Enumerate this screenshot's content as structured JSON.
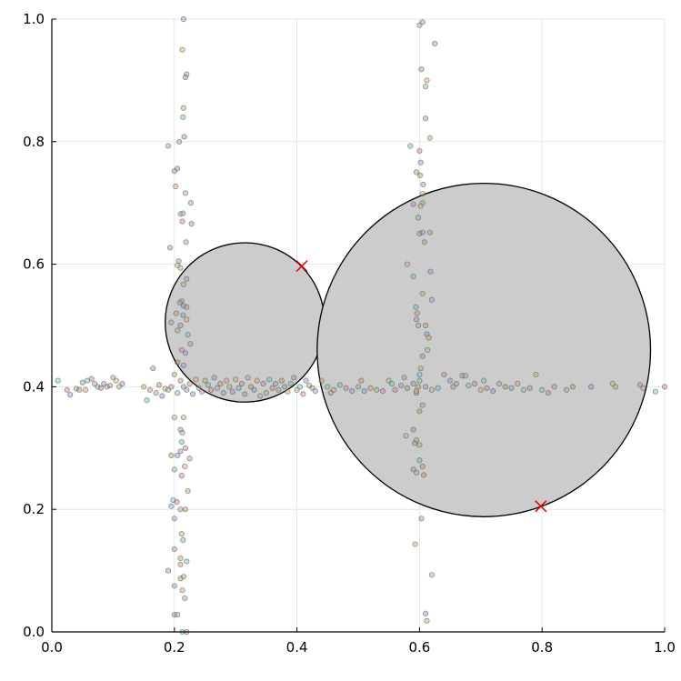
{
  "chart_data": {
    "type": "scatter",
    "title": "",
    "xlabel": "",
    "ylabel": "",
    "xlim": [
      0,
      1
    ],
    "ylim": [
      0,
      1
    ],
    "grid": true,
    "legend": "none",
    "x_ticks": [
      "0.0",
      "0.2",
      "0.4",
      "0.6",
      "0.8",
      "1.0"
    ],
    "y_ticks": [
      "0.0",
      "0.2",
      "0.4",
      "0.6",
      "0.8",
      "1.0"
    ],
    "circles": [
      {
        "cx": 0.315,
        "cy": 0.505,
        "r": 0.13
      },
      {
        "cx": 0.705,
        "cy": 0.46,
        "r": 0.272
      }
    ],
    "markers": [
      {
        "x": 0.408,
        "y": 0.597
      },
      {
        "x": 0.798,
        "y": 0.205
      }
    ],
    "point_colors": [
      "#6fa0d8",
      "#e0a060",
      "#7fbf7f",
      "#c07fc0",
      "#b0b060",
      "#60c0c0",
      "#d08080",
      "#9090d0",
      "#a0a0a0",
      "#c09050"
    ],
    "series": [
      {
        "values": [
          [
            0.215,
            1.0
          ],
          [
            0.213,
            0.95
          ],
          [
            0.22,
            0.91
          ],
          [
            0.218,
            0.905
          ],
          [
            0.215,
            0.855
          ],
          [
            0.214,
            0.84
          ],
          [
            0.216,
            0.808
          ],
          [
            0.208,
            0.8
          ],
          [
            0.19,
            0.793
          ],
          [
            0.205,
            0.756
          ],
          [
            0.2,
            0.752
          ],
          [
            0.202,
            0.727
          ],
          [
            0.218,
            0.716
          ],
          [
            0.227,
            0.7
          ],
          [
            0.21,
            0.682
          ],
          [
            0.214,
            0.683
          ],
          [
            0.213,
            0.67
          ],
          [
            0.228,
            0.666
          ],
          [
            0.219,
            0.636
          ],
          [
            0.193,
            0.627
          ],
          [
            0.207,
            0.605
          ],
          [
            0.205,
            0.598
          ],
          [
            0.21,
            0.594
          ],
          [
            0.22,
            0.576
          ],
          [
            0.215,
            0.567
          ],
          [
            0.212,
            0.54
          ],
          [
            0.209,
            0.537
          ],
          [
            0.215,
            0.532
          ],
          [
            0.22,
            0.53
          ],
          [
            0.203,
            0.52
          ],
          [
            0.214,
            0.517
          ],
          [
            0.22,
            0.51
          ],
          [
            0.195,
            0.505
          ],
          [
            0.21,
            0.5
          ],
          [
            0.205,
            0.492
          ],
          [
            0.222,
            0.485
          ],
          [
            0.212,
            0.46
          ],
          [
            0.218,
            0.455
          ],
          [
            0.226,
            0.47
          ],
          [
            0.205,
            0.44
          ],
          [
            0.215,
            0.435
          ],
          [
            0.2,
            0.35
          ],
          [
            0.215,
            0.35
          ],
          [
            0.21,
            0.33
          ],
          [
            0.213,
            0.325
          ],
          [
            0.212,
            0.31
          ],
          [
            0.218,
            0.3
          ],
          [
            0.21,
            0.295
          ],
          [
            0.225,
            0.283
          ],
          [
            0.195,
            0.288
          ],
          [
            0.205,
            0.288
          ],
          [
            0.217,
            0.27
          ],
          [
            0.2,
            0.265
          ],
          [
            0.212,
            0.255
          ],
          [
            0.222,
            0.23
          ],
          [
            0.198,
            0.215
          ],
          [
            0.204,
            0.212
          ],
          [
            0.195,
            0.205
          ],
          [
            0.21,
            0.2
          ],
          [
            0.218,
            0.2
          ],
          [
            0.2,
            0.185
          ],
          [
            0.212,
            0.16
          ],
          [
            0.214,
            0.15
          ],
          [
            0.2,
            0.135
          ],
          [
            0.21,
            0.12
          ],
          [
            0.22,
            0.115
          ],
          [
            0.21,
            0.11
          ],
          [
            0.19,
            0.1
          ],
          [
            0.215,
            0.09
          ],
          [
            0.21,
            0.087
          ],
          [
            0.2,
            0.075
          ],
          [
            0.213,
            0.068
          ],
          [
            0.217,
            0.055
          ],
          [
            0.2,
            0.028
          ],
          [
            0.205,
            0.028
          ],
          [
            0.213,
            0.0
          ],
          [
            0.22,
            0.0
          ]
        ]
      },
      {
        "values": [
          [
            0.605,
            0.995
          ],
          [
            0.6,
            0.99
          ],
          [
            0.625,
            0.96
          ],
          [
            0.603,
            0.918
          ],
          [
            0.612,
            0.9
          ],
          [
            0.61,
            0.89
          ],
          [
            0.61,
            0.838
          ],
          [
            0.617,
            0.806
          ],
          [
            0.585,
            0.793
          ],
          [
            0.6,
            0.785
          ],
          [
            0.602,
            0.766
          ],
          [
            0.595,
            0.75
          ],
          [
            0.601,
            0.745
          ],
          [
            0.606,
            0.73
          ],
          [
            0.605,
            0.715
          ],
          [
            0.605,
            0.7
          ],
          [
            0.59,
            0.698
          ],
          [
            0.602,
            0.695
          ],
          [
            0.598,
            0.676
          ],
          [
            0.6,
            0.65
          ],
          [
            0.605,
            0.652
          ],
          [
            0.617,
            0.652
          ],
          [
            0.608,
            0.636
          ],
          [
            0.618,
            0.588
          ],
          [
            0.58,
            0.6
          ],
          [
            0.59,
            0.58
          ],
          [
            0.62,
            0.542
          ],
          [
            0.605,
            0.552
          ],
          [
            0.594,
            0.53
          ],
          [
            0.596,
            0.52
          ],
          [
            0.595,
            0.51
          ],
          [
            0.598,
            0.5
          ],
          [
            0.61,
            0.5
          ],
          [
            0.612,
            0.486
          ],
          [
            0.615,
            0.48
          ],
          [
            0.613,
            0.46
          ],
          [
            0.605,
            0.45
          ],
          [
            0.602,
            0.43
          ],
          [
            0.6,
            0.42
          ],
          [
            0.598,
            0.4
          ],
          [
            0.595,
            0.39
          ],
          [
            0.605,
            0.37
          ],
          [
            0.6,
            0.36
          ],
          [
            0.59,
            0.33
          ],
          [
            0.578,
            0.32
          ],
          [
            0.595,
            0.313
          ],
          [
            0.592,
            0.308
          ],
          [
            0.6,
            0.305
          ],
          [
            0.6,
            0.28
          ],
          [
            0.605,
            0.27
          ],
          [
            0.59,
            0.265
          ],
          [
            0.595,
            0.26
          ],
          [
            0.607,
            0.256
          ],
          [
            0.603,
            0.185
          ],
          [
            0.593,
            0.143
          ],
          [
            0.62,
            0.093
          ],
          [
            0.61,
            0.03
          ],
          [
            0.612,
            0.018
          ]
        ]
      },
      {
        "values": [
          [
            0.01,
            0.41
          ],
          [
            0.025,
            0.395
          ],
          [
            0.03,
            0.387
          ],
          [
            0.04,
            0.397
          ],
          [
            0.045,
            0.395
          ],
          [
            0.05,
            0.407
          ],
          [
            0.055,
            0.395
          ],
          [
            0.058,
            0.41
          ],
          [
            0.065,
            0.413
          ],
          [
            0.07,
            0.405
          ],
          [
            0.075,
            0.4
          ],
          [
            0.08,
            0.398
          ],
          [
            0.085,
            0.405
          ],
          [
            0.09,
            0.4
          ],
          [
            0.095,
            0.402
          ],
          [
            0.1,
            0.415
          ],
          [
            0.105,
            0.41
          ],
          [
            0.11,
            0.4
          ],
          [
            0.115,
            0.405
          ],
          [
            0.15,
            0.4
          ],
          [
            0.155,
            0.378
          ],
          [
            0.16,
            0.395
          ],
          [
            0.165,
            0.43
          ],
          [
            0.17,
            0.39
          ],
          [
            0.175,
            0.403
          ],
          [
            0.18,
            0.385
          ],
          [
            0.185,
            0.397
          ],
          [
            0.19,
            0.395
          ],
          [
            0.195,
            0.4
          ],
          [
            0.2,
            0.42
          ],
          [
            0.205,
            0.39
          ],
          [
            0.21,
            0.41
          ],
          [
            0.215,
            0.4
          ],
          [
            0.22,
            0.395
          ],
          [
            0.225,
            0.405
          ],
          [
            0.23,
            0.388
          ],
          [
            0.235,
            0.412
          ],
          [
            0.24,
            0.398
          ],
          [
            0.245,
            0.392
          ],
          [
            0.25,
            0.41
          ],
          [
            0.255,
            0.403
          ],
          [
            0.26,
            0.395
          ],
          [
            0.265,
            0.415
          ],
          [
            0.27,
            0.398
          ],
          [
            0.275,
            0.405
          ],
          [
            0.28,
            0.39
          ],
          [
            0.285,
            0.41
          ],
          [
            0.29,
            0.4
          ],
          [
            0.295,
            0.392
          ],
          [
            0.3,
            0.412
          ],
          [
            0.305,
            0.398
          ],
          [
            0.31,
            0.405
          ],
          [
            0.315,
            0.388
          ],
          [
            0.32,
            0.415
          ],
          [
            0.325,
            0.4
          ],
          [
            0.33,
            0.395
          ],
          [
            0.335,
            0.41
          ],
          [
            0.34,
            0.385
          ],
          [
            0.345,
            0.405
          ],
          [
            0.35,
            0.39
          ],
          [
            0.355,
            0.412
          ],
          [
            0.36,
            0.398
          ],
          [
            0.365,
            0.405
          ],
          [
            0.37,
            0.395
          ],
          [
            0.375,
            0.41
          ],
          [
            0.38,
            0.4
          ],
          [
            0.385,
            0.392
          ],
          [
            0.39,
            0.405
          ],
          [
            0.395,
            0.415
          ],
          [
            0.4,
            0.395
          ],
          [
            0.405,
            0.4
          ],
          [
            0.41,
            0.388
          ],
          [
            0.415,
            0.41
          ],
          [
            0.42,
            0.402
          ],
          [
            0.425,
            0.398
          ],
          [
            0.43,
            0.393
          ],
          [
            0.44,
            0.41
          ],
          [
            0.45,
            0.4
          ],
          [
            0.455,
            0.39
          ],
          [
            0.46,
            0.395
          ],
          [
            0.47,
            0.403
          ],
          [
            0.48,
            0.398
          ],
          [
            0.49,
            0.393
          ],
          [
            0.5,
            0.4
          ],
          [
            0.505,
            0.41
          ],
          [
            0.51,
            0.393
          ],
          [
            0.52,
            0.398
          ],
          [
            0.53,
            0.395
          ],
          [
            0.54,
            0.393
          ],
          [
            0.55,
            0.41
          ],
          [
            0.555,
            0.405
          ],
          [
            0.56,
            0.395
          ],
          [
            0.57,
            0.402
          ],
          [
            0.575,
            0.415
          ],
          [
            0.58,
            0.398
          ],
          [
            0.59,
            0.405
          ],
          [
            0.595,
            0.393
          ],
          [
            0.6,
            0.41
          ],
          [
            0.61,
            0.4
          ],
          [
            0.62,
            0.395
          ],
          [
            0.63,
            0.398
          ],
          [
            0.64,
            0.42
          ],
          [
            0.65,
            0.41
          ],
          [
            0.655,
            0.4
          ],
          [
            0.66,
            0.405
          ],
          [
            0.67,
            0.418
          ],
          [
            0.675,
            0.418
          ],
          [
            0.68,
            0.402
          ],
          [
            0.69,
            0.405
          ],
          [
            0.7,
            0.395
          ],
          [
            0.705,
            0.41
          ],
          [
            0.71,
            0.398
          ],
          [
            0.72,
            0.393
          ],
          [
            0.73,
            0.405
          ],
          [
            0.74,
            0.4
          ],
          [
            0.75,
            0.398
          ],
          [
            0.76,
            0.405
          ],
          [
            0.77,
            0.395
          ],
          [
            0.78,
            0.398
          ],
          [
            0.79,
            0.42
          ],
          [
            0.8,
            0.395
          ],
          [
            0.81,
            0.39
          ],
          [
            0.82,
            0.4
          ],
          [
            0.84,
            0.395
          ],
          [
            0.85,
            0.4
          ],
          [
            0.88,
            0.4
          ],
          [
            0.915,
            0.405
          ],
          [
            0.92,
            0.4
          ],
          [
            0.96,
            0.403
          ],
          [
            0.965,
            0.398
          ],
          [
            0.985,
            0.392
          ],
          [
            1.0,
            0.4
          ]
        ]
      }
    ]
  }
}
